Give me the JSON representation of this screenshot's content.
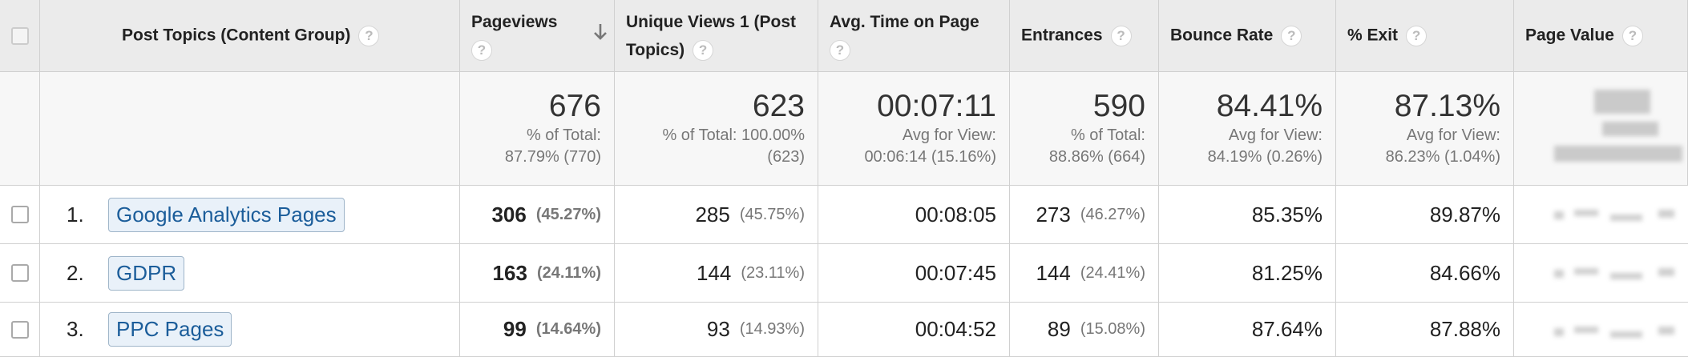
{
  "help_icon": "?",
  "header": {
    "columns": [
      "Post Topics (Content Group)",
      "Pageviews",
      "Unique Views 1 (Post Topics)",
      "Avg. Time on Page",
      "Entrances",
      "Bounce Rate",
      "% Exit",
      "Page Value"
    ]
  },
  "summary": [
    {
      "value": "676",
      "lines": [
        "% of Total:",
        "87.79% (770)"
      ]
    },
    {
      "value": "623",
      "lines": [
        "% of Total: 100.00%",
        "(623)"
      ]
    },
    {
      "value": "00:07:11",
      "lines": [
        "Avg for View:",
        "00:06:14 (15.16%)"
      ]
    },
    {
      "value": "590",
      "lines": [
        "% of Total:",
        "88.86% (664)"
      ]
    },
    {
      "value": "84.41%",
      "lines": [
        "Avg for View:",
        "84.19% (0.26%)"
      ]
    },
    {
      "value": "87.13%",
      "lines": [
        "Avg for View:",
        "86.23% (1.04%)"
      ]
    }
  ],
  "rows": [
    {
      "index": "1.",
      "topic": "Google Analytics Pages",
      "pageviews": "306",
      "pageviews_pct": "(45.27%)",
      "unique": "285",
      "unique_pct": "(45.75%)",
      "avg_time": "00:08:05",
      "entrances": "273",
      "entrances_pct": "(46.27%)",
      "bounce": "85.35%",
      "exit": "89.87%"
    },
    {
      "index": "2.",
      "topic": "GDPR",
      "pageviews": "163",
      "pageviews_pct": "(24.11%)",
      "unique": "144",
      "unique_pct": "(23.11%)",
      "avg_time": "00:07:45",
      "entrances": "144",
      "entrances_pct": "(24.41%)",
      "bounce": "81.25%",
      "exit": "84.66%"
    },
    {
      "index": "3.",
      "topic": "PPC Pages",
      "pageviews": "99",
      "pageviews_pct": "(14.64%)",
      "unique": "93",
      "unique_pct": "(14.93%)",
      "avg_time": "00:04:52",
      "entrances": "89",
      "entrances_pct": "(15.08%)",
      "bounce": "87.64%",
      "exit": "87.88%"
    }
  ]
}
